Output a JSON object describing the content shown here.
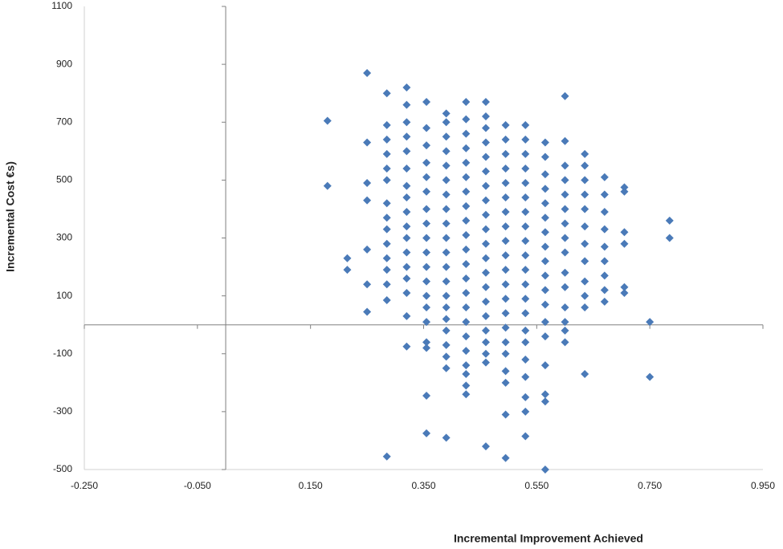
{
  "chart_data": {
    "type": "scatter",
    "x_label": "Incremental  Improvement Achieved",
    "y_label": "Incremental Cost €s)",
    "color": "#4a7ab8",
    "xlim": [
      -0.25,
      0.95
    ],
    "ylim": [
      -500,
      1100
    ],
    "xticks": [
      {
        "value": -0.25,
        "label": "-0.250"
      },
      {
        "value": -0.05,
        "label": "-0.050"
      },
      {
        "value": 0.15,
        "label": "0.150"
      },
      {
        "value": 0.35,
        "label": "0.350"
      },
      {
        "value": 0.55,
        "label": "0.550"
      },
      {
        "value": 0.75,
        "label": "0.750"
      },
      {
        "value": 0.95,
        "label": "0.950"
      }
    ],
    "yticks": [
      -500,
      -300,
      -100,
      100,
      300,
      500,
      700,
      900,
      1100
    ],
    "x": [
      0.18,
      0.18,
      0.215,
      0.215,
      0.25,
      0.25,
      0.25,
      0.25,
      0.25,
      0.25,
      0.25,
      0.285,
      0.285,
      0.285,
      0.285,
      0.285,
      0.285,
      0.285,
      0.285,
      0.285,
      0.285,
      0.285,
      0.285,
      0.285,
      0.285,
      0.285,
      0.32,
      0.32,
      0.32,
      0.32,
      0.32,
      0.32,
      0.32,
      0.32,
      0.32,
      0.32,
      0.32,
      0.32,
      0.32,
      0.32,
      0.32,
      0.32,
      0.32,
      0.355,
      0.355,
      0.355,
      0.355,
      0.355,
      0.355,
      0.355,
      0.355,
      0.355,
      0.355,
      0.355,
      0.355,
      0.355,
      0.355,
      0.355,
      0.355,
      0.355,
      0.355,
      0.355,
      0.39,
      0.39,
      0.39,
      0.39,
      0.39,
      0.39,
      0.39,
      0.39,
      0.39,
      0.39,
      0.39,
      0.39,
      0.39,
      0.39,
      0.39,
      0.39,
      0.39,
      0.39,
      0.39,
      0.39,
      0.39,
      0.425,
      0.425,
      0.425,
      0.425,
      0.425,
      0.425,
      0.425,
      0.425,
      0.425,
      0.425,
      0.425,
      0.425,
      0.425,
      0.425,
      0.425,
      0.425,
      0.425,
      0.425,
      0.425,
      0.425,
      0.425,
      0.425,
      0.46,
      0.46,
      0.46,
      0.46,
      0.46,
      0.46,
      0.46,
      0.46,
      0.46,
      0.46,
      0.46,
      0.46,
      0.46,
      0.46,
      0.46,
      0.46,
      0.46,
      0.46,
      0.46,
      0.46,
      0.46,
      0.495,
      0.495,
      0.495,
      0.495,
      0.495,
      0.495,
      0.495,
      0.495,
      0.495,
      0.495,
      0.495,
      0.495,
      0.495,
      0.495,
      0.495,
      0.495,
      0.495,
      0.495,
      0.495,
      0.495,
      0.495,
      0.53,
      0.53,
      0.53,
      0.53,
      0.53,
      0.53,
      0.53,
      0.53,
      0.53,
      0.53,
      0.53,
      0.53,
      0.53,
      0.53,
      0.53,
      0.53,
      0.53,
      0.53,
      0.53,
      0.53,
      0.53,
      0.565,
      0.565,
      0.565,
      0.565,
      0.565,
      0.565,
      0.565,
      0.565,
      0.565,
      0.565,
      0.565,
      0.565,
      0.565,
      0.565,
      0.565,
      0.565,
      0.565,
      0.565,
      0.6,
      0.6,
      0.6,
      0.6,
      0.6,
      0.6,
      0.6,
      0.6,
      0.6,
      0.6,
      0.6,
      0.6,
      0.6,
      0.6,
      0.6,
      0.635,
      0.635,
      0.635,
      0.635,
      0.635,
      0.635,
      0.635,
      0.635,
      0.635,
      0.635,
      0.635,
      0.635,
      0.67,
      0.67,
      0.67,
      0.67,
      0.67,
      0.67,
      0.67,
      0.67,
      0.67,
      0.705,
      0.705,
      0.705,
      0.705,
      0.705,
      0.705,
      0.75,
      0.75,
      0.785,
      0.785
    ],
    "values": [
      705,
      480,
      230,
      190,
      870,
      630,
      490,
      430,
      260,
      140,
      45,
      800,
      690,
      640,
      590,
      540,
      500,
      420,
      370,
      330,
      280,
      230,
      190,
      140,
      85,
      -455,
      820,
      760,
      700,
      650,
      600,
      540,
      480,
      440,
      390,
      340,
      300,
      250,
      200,
      160,
      110,
      30,
      -75,
      770,
      680,
      620,
      560,
      510,
      460,
      400,
      350,
      300,
      250,
      200,
      150,
      100,
      60,
      10,
      -60,
      -80,
      -245,
      -375,
      730,
      700,
      650,
      600,
      550,
      500,
      450,
      400,
      350,
      300,
      250,
      200,
      150,
      100,
      60,
      20,
      -20,
      -70,
      -110,
      -150,
      -390,
      770,
      710,
      660,
      610,
      560,
      510,
      460,
      410,
      360,
      310,
      260,
      210,
      160,
      110,
      60,
      10,
      -40,
      -90,
      -140,
      -170,
      -210,
      -240,
      770,
      720,
      680,
      630,
      580,
      530,
      480,
      430,
      380,
      330,
      280,
      230,
      180,
      130,
      80,
      30,
      -20,
      -60,
      -100,
      -130,
      -420,
      690,
      640,
      590,
      540,
      490,
      440,
      390,
      340,
      290,
      240,
      190,
      140,
      90,
      40,
      -10,
      -60,
      -100,
      -160,
      -200,
      -310,
      -460,
      690,
      640,
      590,
      540,
      490,
      440,
      390,
      340,
      290,
      240,
      190,
      140,
      90,
      40,
      -20,
      -60,
      -120,
      -180,
      -250,
      -300,
      -385,
      630,
      580,
      520,
      470,
      420,
      370,
      320,
      270,
      220,
      170,
      120,
      70,
      10,
      -40,
      -140,
      -240,
      -265,
      -500,
      790,
      635,
      550,
      500,
      450,
      400,
      350,
      300,
      250,
      180,
      130,
      60,
      10,
      -20,
      -60,
      590,
      550,
      500,
      450,
      400,
      340,
      280,
      220,
      150,
      100,
      60,
      -170,
      510,
      450,
      390,
      330,
      270,
      220,
      170,
      120,
      80,
      475,
      460,
      320,
      280,
      130,
      110,
      10,
      -180,
      360,
      300
    ]
  }
}
